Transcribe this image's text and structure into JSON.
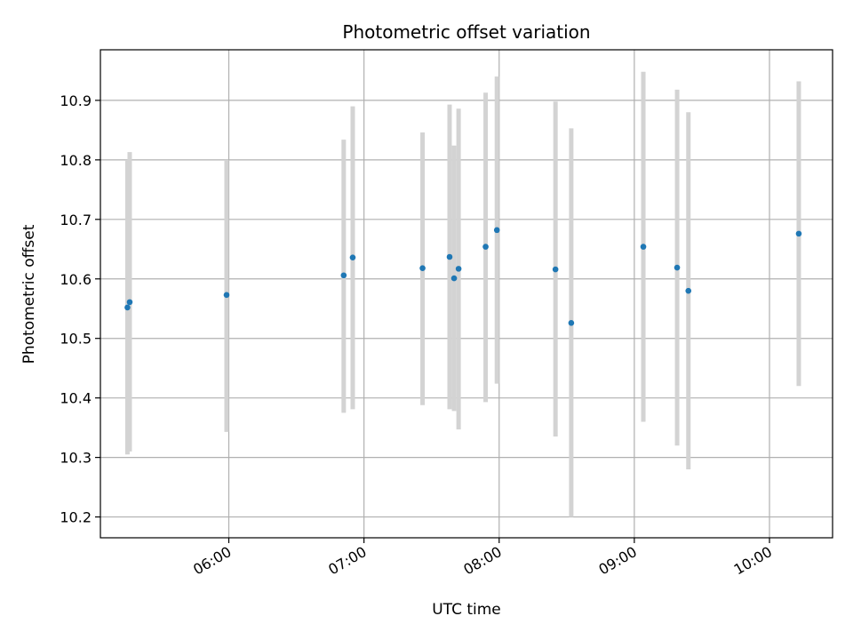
{
  "chart_data": {
    "type": "scatter",
    "title": "Photometric offset variation",
    "xlabel": "UTC time",
    "ylabel": "Photometric offset",
    "grid": true,
    "xlim": [
      "05:03",
      "10:28"
    ],
    "ylim": [
      10.165,
      10.985
    ],
    "x_ticks": [
      "06:00",
      "07:00",
      "08:00",
      "09:00",
      "10:00"
    ],
    "y_ticks": [
      10.2,
      10.3,
      10.4,
      10.5,
      10.6,
      10.7,
      10.8,
      10.9
    ],
    "colors": {
      "point": "#1f77b4",
      "error_bar": "#d3d3d3"
    },
    "points": [
      {
        "x": "05:15",
        "y": 10.552,
        "y_low": 10.305,
        "y_high": 10.8
      },
      {
        "x": "05:16",
        "y": 10.561,
        "y_low": 10.31,
        "y_high": 10.813
      },
      {
        "x": "05:59",
        "y": 10.573,
        "y_low": 10.343,
        "y_high": 10.8
      },
      {
        "x": "06:51",
        "y": 10.606,
        "y_low": 10.375,
        "y_high": 10.834
      },
      {
        "x": "06:55",
        "y": 10.636,
        "y_low": 10.381,
        "y_high": 10.89
      },
      {
        "x": "07:26",
        "y": 10.618,
        "y_low": 10.388,
        "y_high": 10.846
      },
      {
        "x": "07:38",
        "y": 10.637,
        "y_low": 10.381,
        "y_high": 10.893
      },
      {
        "x": "07:40",
        "y": 10.601,
        "y_low": 10.378,
        "y_high": 10.824
      },
      {
        "x": "07:42",
        "y": 10.617,
        "y_low": 10.347,
        "y_high": 10.886
      },
      {
        "x": "07:54",
        "y": 10.654,
        "y_low": 10.393,
        "y_high": 10.913
      },
      {
        "x": "07:59",
        "y": 10.682,
        "y_low": 10.424,
        "y_high": 10.94
      },
      {
        "x": "08:25",
        "y": 10.616,
        "y_low": 10.335,
        "y_high": 10.898
      },
      {
        "x": "08:32",
        "y": 10.526,
        "y_low": 10.2,
        "y_high": 10.853
      },
      {
        "x": "09:04",
        "y": 10.654,
        "y_low": 10.36,
        "y_high": 10.948
      },
      {
        "x": "09:19",
        "y": 10.619,
        "y_low": 10.32,
        "y_high": 10.918
      },
      {
        "x": "09:24",
        "y": 10.58,
        "y_low": 10.28,
        "y_high": 10.88
      },
      {
        "x": "10:13",
        "y": 10.676,
        "y_low": 10.42,
        "y_high": 10.932
      }
    ]
  }
}
